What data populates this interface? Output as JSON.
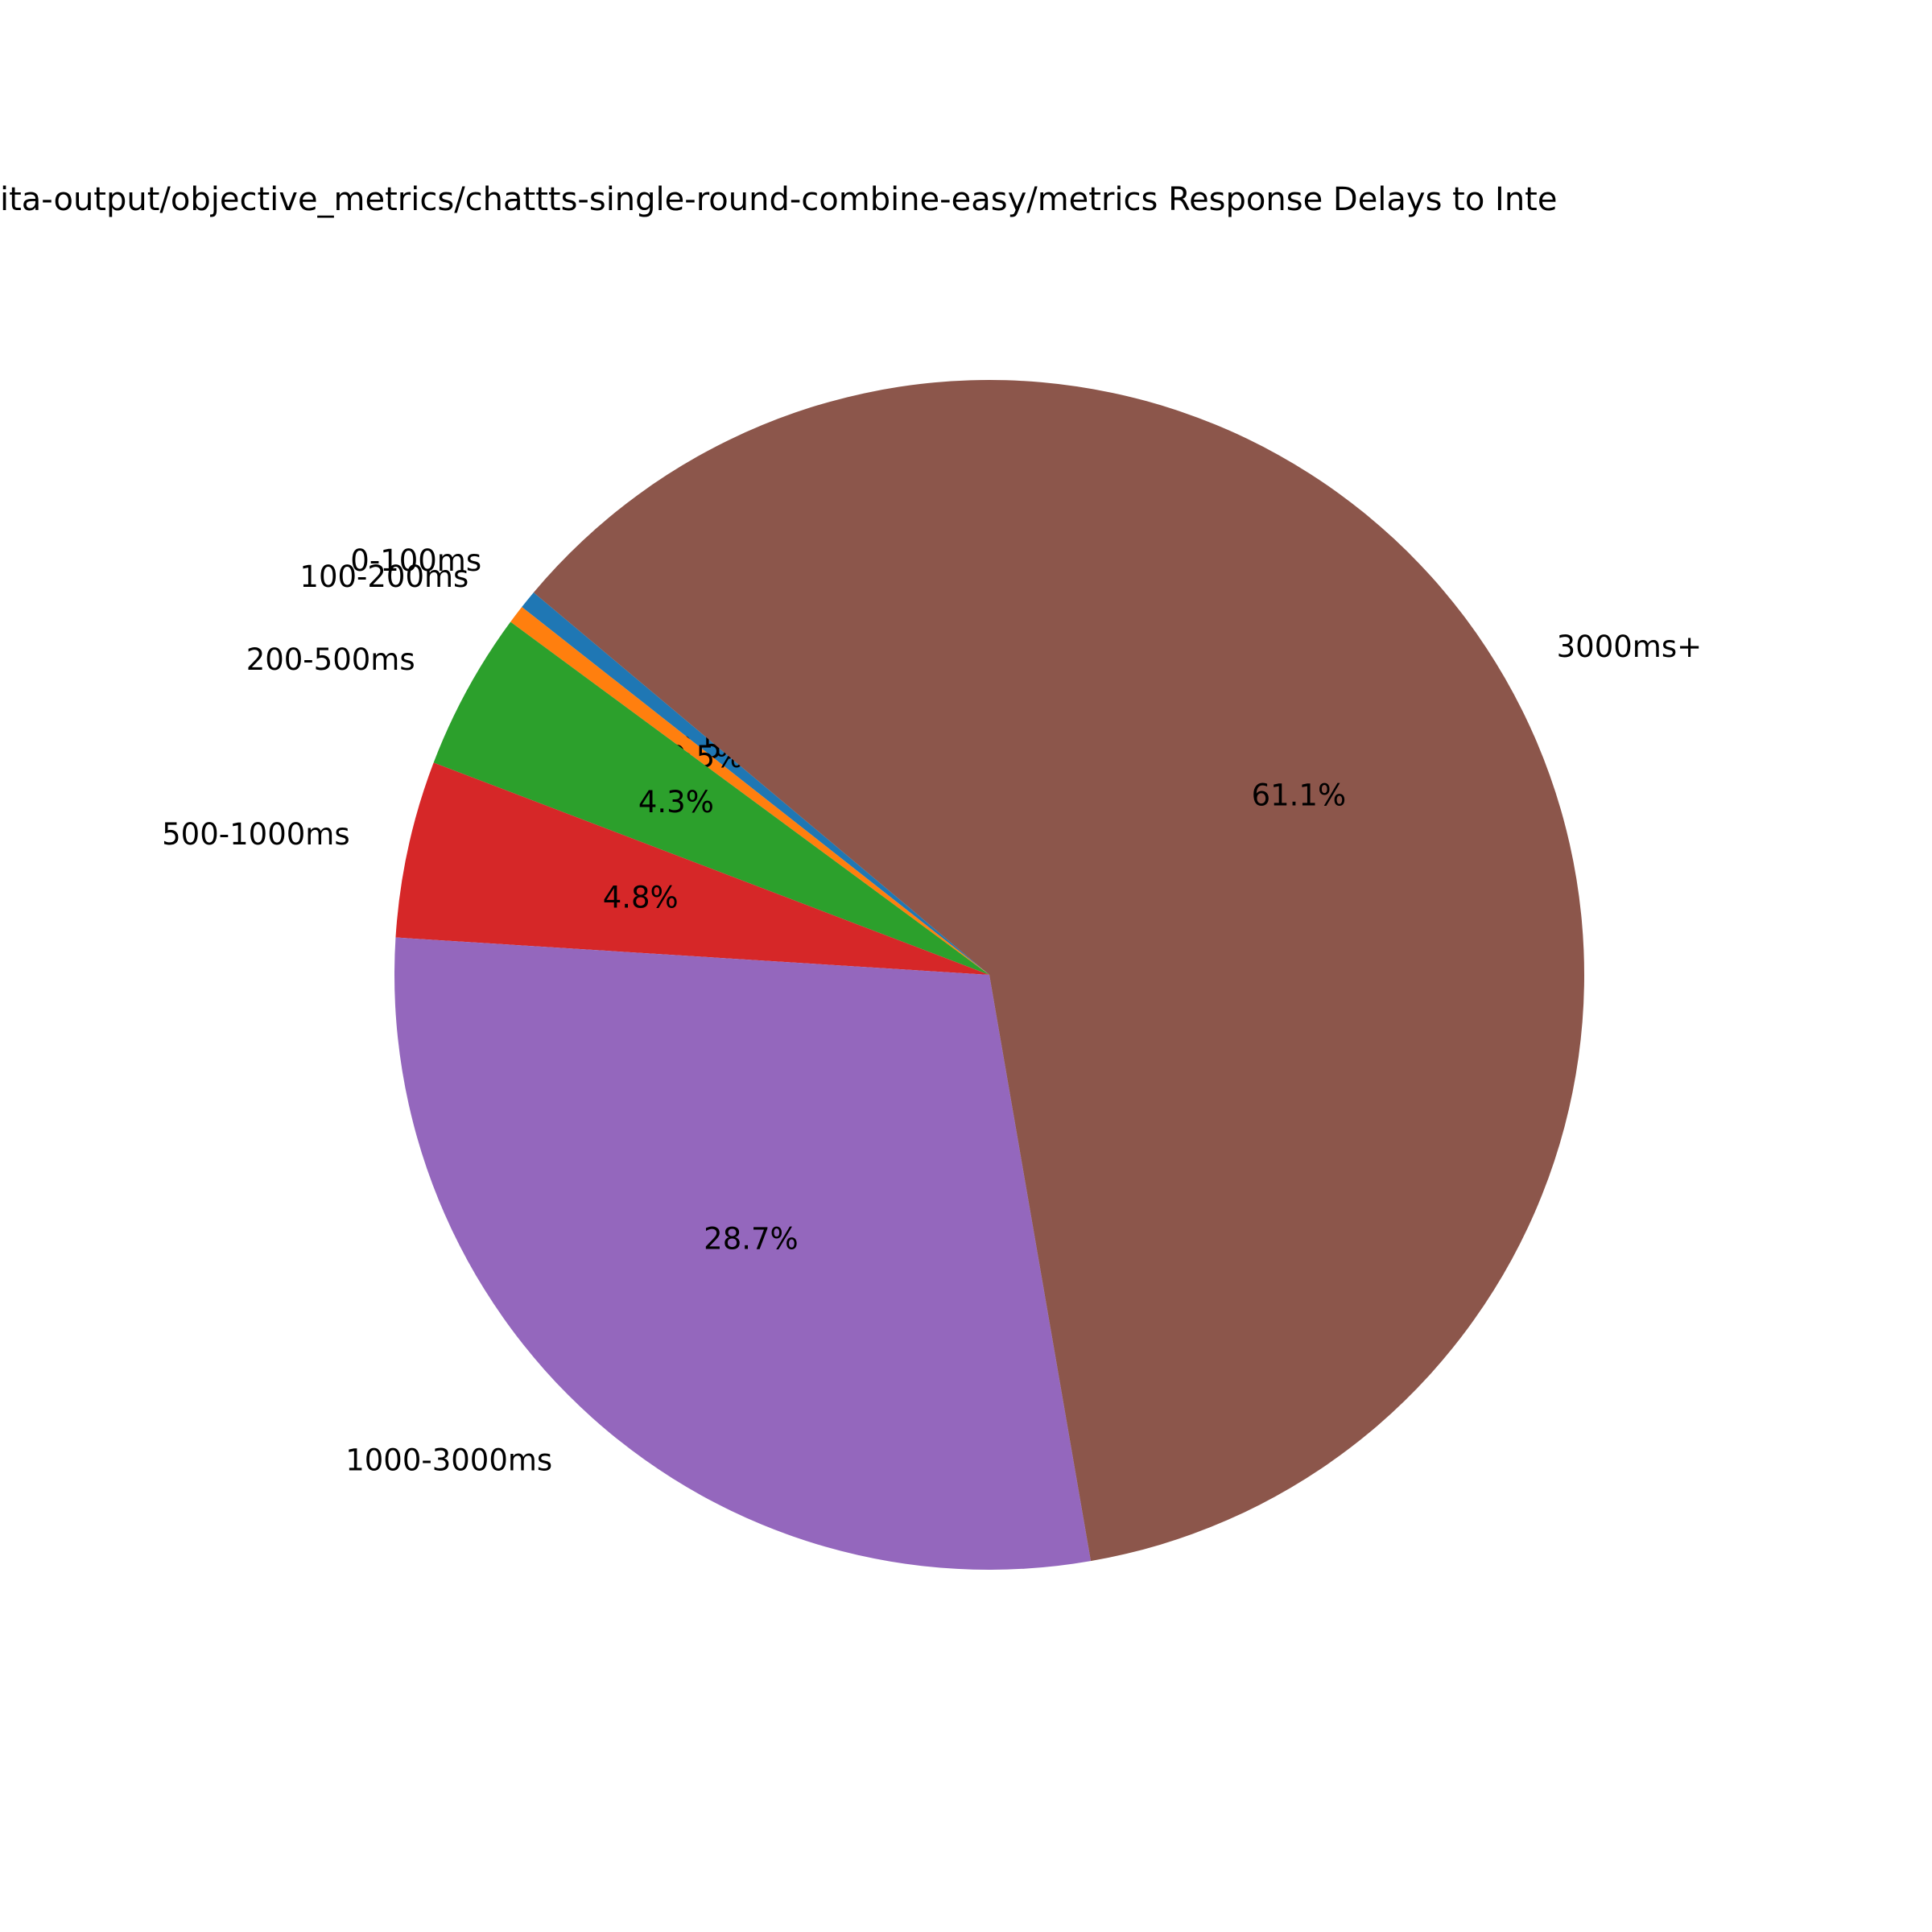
{
  "chart_data": {
    "type": "pie",
    "title": "ita-output/objective_metrics/chattts-single-round-combine-easy/metrics Response Delays to Inte",
    "categories": [
      "0-100ms",
      "100-200ms",
      "200-500ms",
      "500-1000ms",
      "1000-3000ms",
      "3000ms+"
    ],
    "values": [
      0.5,
      0.5,
      4.3,
      4.8,
      28.7,
      61.1
    ],
    "value_labels": [
      "0.5%",
      "0.5%",
      "4.3%",
      "4.8%",
      "28.7%",
      "61.1%"
    ],
    "colors": [
      "#1f77b4",
      "#ff7f0e",
      "#2ca02c",
      "#d62728",
      "#9467bd",
      "#8c564b"
    ],
    "start_angle": 140
  }
}
